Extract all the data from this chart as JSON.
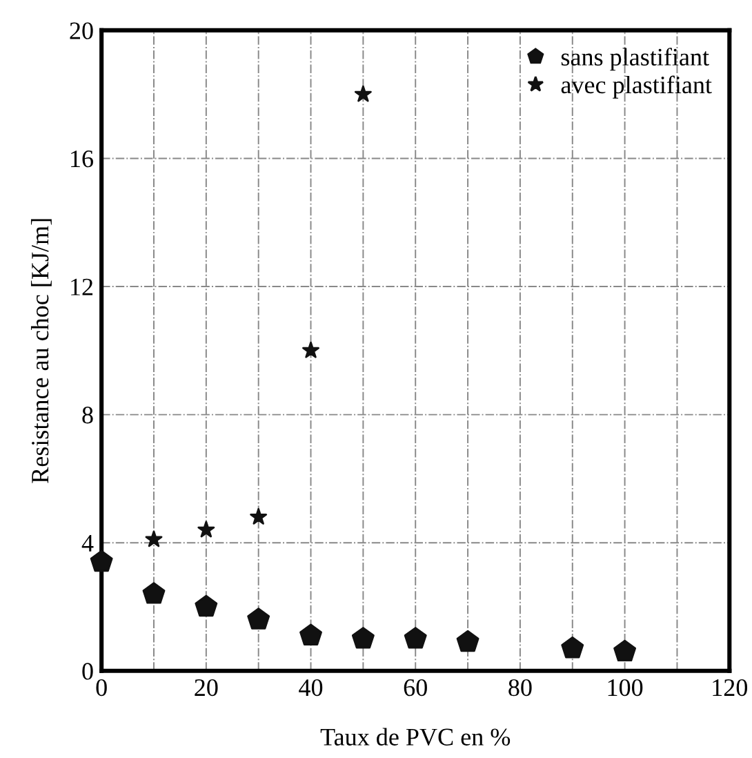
{
  "chart_data": {
    "type": "scatter",
    "xlabel": "Taux de PVC en %",
    "ylabel": "Resistance au choc [KJ/m]",
    "xlim": [
      0,
      120
    ],
    "ylim": [
      0,
      20
    ],
    "xticks": [
      0,
      {
        "value": 10,
        "label": null
      },
      20,
      {
        "value": 30,
        "label": null
      },
      40,
      {
        "value": 50,
        "label": null
      },
      60,
      {
        "value": 70,
        "label": null
      },
      80,
      {
        "value": 90,
        "label": null
      },
      100,
      {
        "value": 110,
        "label": null
      },
      120
    ],
    "yticks": [
      0,
      4,
      8,
      12,
      16,
      20
    ],
    "grid": true,
    "legend": "top right",
    "series": [
      {
        "name": "sans plastifiant",
        "color": "#111111",
        "x": [
          0,
          10,
          20,
          30,
          40,
          50,
          60,
          70,
          90,
          100
        ],
        "values": [
          3.4,
          2.4,
          2.0,
          1.6,
          1.1,
          1.0,
          1.0,
          0.9,
          0.7,
          0.6
        ]
      },
      {
        "name": "avec plastifiant",
        "color": "#111111",
        "marker": "star",
        "x": [
          10,
          20,
          30,
          40,
          50
        ],
        "values": [
          4.1,
          4.4,
          4.8,
          10.0,
          18.0
        ]
      }
    ]
  }
}
